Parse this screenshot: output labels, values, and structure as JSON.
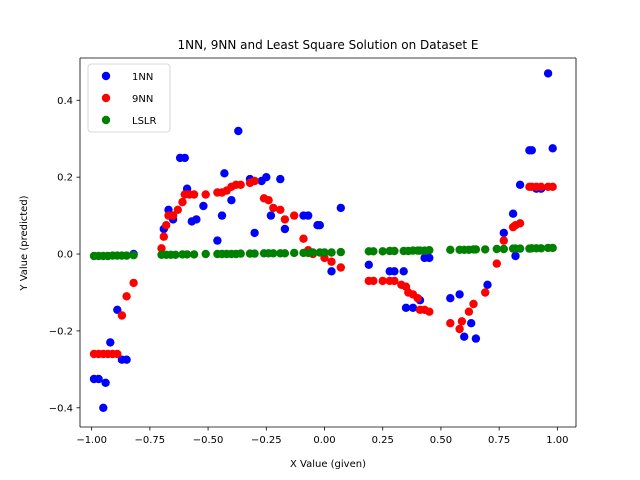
{
  "chart_data": {
    "type": "scatter",
    "title": "1NN, 9NN and Least Square Solution on Dataset E",
    "xlabel": "X Value (given)",
    "ylabel": "Y Value (predicted)",
    "xlim": [
      -1.05,
      1.08
    ],
    "ylim": [
      -0.45,
      0.51
    ],
    "xticks": [
      -1.0,
      -0.75,
      -0.5,
      -0.25,
      0.0,
      0.25,
      0.5,
      0.75,
      1.0
    ],
    "xtick_labels": [
      "−1.00",
      "−0.75",
      "−0.50",
      "−0.25",
      "0.00",
      "0.25",
      "0.50",
      "0.75",
      "1.00"
    ],
    "yticks": [
      -0.4,
      -0.2,
      0.0,
      0.2,
      0.4
    ],
    "ytick_labels": [
      "−0.4",
      "−0.2",
      "0.0",
      "0.2",
      "0.4"
    ],
    "grid": false,
    "legend_position": "upper-left",
    "series": [
      {
        "name": "1NN",
        "color": "#0000ff",
        "points": [
          [
            -0.99,
            -0.325
          ],
          [
            -0.97,
            -0.325
          ],
          [
            -0.95,
            -0.4
          ],
          [
            -0.94,
            -0.335
          ],
          [
            -0.92,
            -0.23
          ],
          [
            -0.89,
            -0.145
          ],
          [
            -0.87,
            -0.275
          ],
          [
            -0.85,
            -0.275
          ],
          [
            -0.82,
            0.0
          ],
          [
            -0.69,
            0.065
          ],
          [
            -0.67,
            0.115
          ],
          [
            -0.65,
            0.09
          ],
          [
            -0.62,
            0.25
          ],
          [
            -0.6,
            0.25
          ],
          [
            -0.59,
            0.17
          ],
          [
            -0.57,
            0.085
          ],
          [
            -0.55,
            0.09
          ],
          [
            -0.52,
            0.125
          ],
          [
            -0.46,
            0.035
          ],
          [
            -0.44,
            0.1
          ],
          [
            -0.43,
            0.21
          ],
          [
            -0.4,
            0.14
          ],
          [
            -0.37,
            0.32
          ],
          [
            -0.32,
            0.195
          ],
          [
            -0.3,
            0.055
          ],
          [
            -0.27,
            0.19
          ],
          [
            -0.25,
            0.2
          ],
          [
            -0.23,
            0.1
          ],
          [
            -0.19,
            0.195
          ],
          [
            -0.17,
            0.065
          ],
          [
            -0.09,
            0.1
          ],
          [
            -0.07,
            0.1
          ],
          [
            -0.03,
            0.075
          ],
          [
            -0.02,
            0.075
          ],
          [
            0.03,
            -0.045
          ],
          [
            0.07,
            0.12
          ],
          [
            0.19,
            -0.028
          ],
          [
            0.28,
            -0.045
          ],
          [
            0.3,
            -0.045
          ],
          [
            0.34,
            -0.045
          ],
          [
            0.35,
            -0.14
          ],
          [
            0.38,
            -0.14
          ],
          [
            0.41,
            -0.12
          ],
          [
            0.43,
            -0.01
          ],
          [
            0.45,
            -0.01
          ],
          [
            0.54,
            -0.115
          ],
          [
            0.58,
            -0.105
          ],
          [
            0.6,
            -0.215
          ],
          [
            0.63,
            -0.18
          ],
          [
            0.65,
            -0.22
          ],
          [
            0.7,
            -0.08
          ],
          [
            0.77,
            0.055
          ],
          [
            0.81,
            0.105
          ],
          [
            0.82,
            -0.005
          ],
          [
            0.84,
            0.18
          ],
          [
            0.88,
            0.27
          ],
          [
            0.89,
            0.27
          ],
          [
            0.91,
            0.17
          ],
          [
            0.93,
            0.17
          ],
          [
            0.96,
            0.47
          ],
          [
            0.98,
            0.275
          ]
        ]
      },
      {
        "name": "9NN",
        "color": "#ff0000",
        "points": [
          [
            -0.99,
            -0.26
          ],
          [
            -0.97,
            -0.26
          ],
          [
            -0.95,
            -0.26
          ],
          [
            -0.93,
            -0.26
          ],
          [
            -0.91,
            -0.26
          ],
          [
            -0.89,
            -0.26
          ],
          [
            -0.87,
            -0.16
          ],
          [
            -0.85,
            -0.11
          ],
          [
            -0.82,
            -0.075
          ],
          [
            -0.7,
            0.015
          ],
          [
            -0.69,
            0.045
          ],
          [
            -0.68,
            0.075
          ],
          [
            -0.67,
            0.1
          ],
          [
            -0.65,
            0.1
          ],
          [
            -0.63,
            0.115
          ],
          [
            -0.61,
            0.135
          ],
          [
            -0.6,
            0.155
          ],
          [
            -0.58,
            0.155
          ],
          [
            -0.56,
            0.155
          ],
          [
            -0.51,
            0.155
          ],
          [
            -0.46,
            0.16
          ],
          [
            -0.44,
            0.16
          ],
          [
            -0.42,
            0.165
          ],
          [
            -0.4,
            0.175
          ],
          [
            -0.38,
            0.18
          ],
          [
            -0.36,
            0.18
          ],
          [
            -0.32,
            0.185
          ],
          [
            -0.3,
            0.19
          ],
          [
            -0.26,
            0.145
          ],
          [
            -0.24,
            0.14
          ],
          [
            -0.22,
            0.12
          ],
          [
            -0.19,
            0.115
          ],
          [
            -0.17,
            0.09
          ],
          [
            -0.13,
            0.1
          ],
          [
            -0.09,
            0.04
          ],
          [
            -0.07,
            0.01
          ],
          [
            -0.05,
            0.0
          ],
          [
            0.0,
            -0.01
          ],
          [
            0.03,
            -0.02
          ],
          [
            0.07,
            -0.035
          ],
          [
            0.19,
            -0.07
          ],
          [
            0.21,
            -0.07
          ],
          [
            0.25,
            -0.07
          ],
          [
            0.28,
            -0.07
          ],
          [
            0.3,
            -0.07
          ],
          [
            0.33,
            -0.08
          ],
          [
            0.35,
            -0.085
          ],
          [
            0.36,
            -0.1
          ],
          [
            0.38,
            -0.105
          ],
          [
            0.4,
            -0.115
          ],
          [
            0.41,
            -0.145
          ],
          [
            0.43,
            -0.145
          ],
          [
            0.45,
            -0.15
          ],
          [
            0.54,
            -0.18
          ],
          [
            0.58,
            -0.195
          ],
          [
            0.59,
            -0.175
          ],
          [
            0.62,
            -0.15
          ],
          [
            0.64,
            -0.13
          ],
          [
            0.69,
            -0.1
          ],
          [
            0.74,
            -0.025
          ],
          [
            0.77,
            0.035
          ],
          [
            0.81,
            0.07
          ],
          [
            0.82,
            0.075
          ],
          [
            0.84,
            0.08
          ],
          [
            0.88,
            0.175
          ],
          [
            0.89,
            0.175
          ],
          [
            0.91,
            0.175
          ],
          [
            0.93,
            0.175
          ],
          [
            0.96,
            0.175
          ],
          [
            0.98,
            0.175
          ]
        ]
      },
      {
        "name": "LSLR",
        "color": "#008000",
        "points": [
          [
            -0.99,
            -0.005
          ],
          [
            -0.97,
            -0.005
          ],
          [
            -0.95,
            -0.005
          ],
          [
            -0.93,
            -0.005
          ],
          [
            -0.91,
            -0.004
          ],
          [
            -0.89,
            -0.004
          ],
          [
            -0.87,
            -0.004
          ],
          [
            -0.85,
            -0.004
          ],
          [
            -0.82,
            -0.003
          ],
          [
            -0.7,
            -0.002
          ],
          [
            -0.68,
            -0.002
          ],
          [
            -0.66,
            -0.002
          ],
          [
            -0.64,
            -0.002
          ],
          [
            -0.61,
            -0.001
          ],
          [
            -0.59,
            -0.001
          ],
          [
            -0.56,
            -0.001
          ],
          [
            -0.51,
            0.0
          ],
          [
            -0.46,
            0.0
          ],
          [
            -0.44,
            0.0
          ],
          [
            -0.42,
            0.0
          ],
          [
            -0.4,
            0.0
          ],
          [
            -0.38,
            0.0
          ],
          [
            -0.36,
            0.001
          ],
          [
            -0.32,
            0.001
          ],
          [
            -0.3,
            0.001
          ],
          [
            -0.26,
            0.002
          ],
          [
            -0.24,
            0.002
          ],
          [
            -0.22,
            0.002
          ],
          [
            -0.19,
            0.002
          ],
          [
            -0.17,
            0.002
          ],
          [
            -0.13,
            0.003
          ],
          [
            -0.09,
            0.003
          ],
          [
            -0.07,
            0.003
          ],
          [
            -0.05,
            0.004
          ],
          [
            -0.02,
            0.004
          ],
          [
            0.0,
            0.004
          ],
          [
            0.03,
            0.004
          ],
          [
            0.07,
            0.005
          ],
          [
            0.19,
            0.007
          ],
          [
            0.21,
            0.007
          ],
          [
            0.25,
            0.007
          ],
          [
            0.28,
            0.008
          ],
          [
            0.3,
            0.008
          ],
          [
            0.34,
            0.008
          ],
          [
            0.36,
            0.008
          ],
          [
            0.38,
            0.009
          ],
          [
            0.4,
            0.009
          ],
          [
            0.41,
            0.009
          ],
          [
            0.43,
            0.009
          ],
          [
            0.45,
            0.01
          ],
          [
            0.54,
            0.011
          ],
          [
            0.58,
            0.011
          ],
          [
            0.6,
            0.011
          ],
          [
            0.62,
            0.011
          ],
          [
            0.64,
            0.012
          ],
          [
            0.65,
            0.012
          ],
          [
            0.69,
            0.012
          ],
          [
            0.74,
            0.013
          ],
          [
            0.77,
            0.013
          ],
          [
            0.81,
            0.014
          ],
          [
            0.82,
            0.014
          ],
          [
            0.84,
            0.014
          ],
          [
            0.88,
            0.014
          ],
          [
            0.89,
            0.015
          ],
          [
            0.91,
            0.015
          ],
          [
            0.93,
            0.015
          ],
          [
            0.96,
            0.016
          ],
          [
            0.98,
            0.016
          ]
        ]
      }
    ]
  }
}
